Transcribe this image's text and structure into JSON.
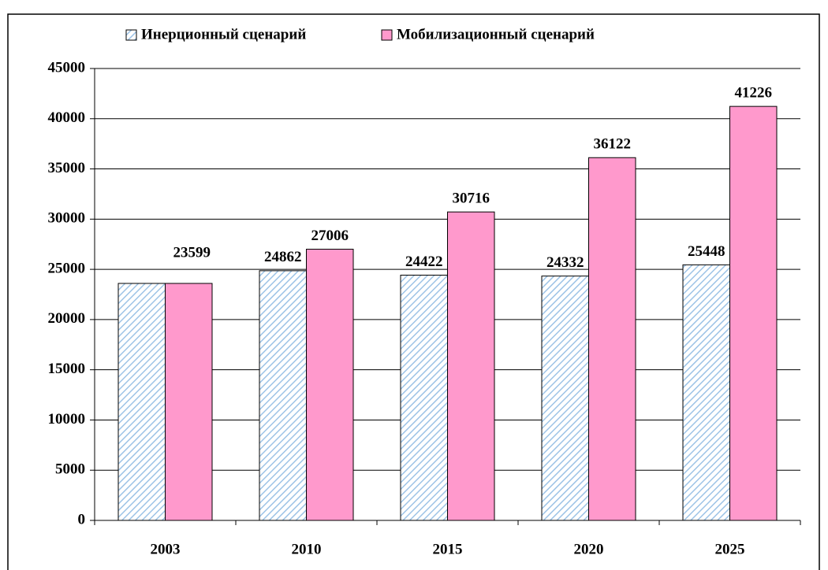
{
  "chart_data": {
    "type": "bar",
    "categories": [
      "2003",
      "2010",
      "2015",
      "2020",
      "2025"
    ],
    "series": [
      {
        "name": "Инерционный сценарий",
        "color": "#9dc3e6",
        "pattern": "hatch",
        "values": [
          23599,
          24862,
          24422,
          24332,
          25448
        ],
        "value_labels": [
          null,
          "24862",
          "24422",
          "24332",
          "25448"
        ]
      },
      {
        "name": "Мобилизационный сценарий",
        "color": "#ff99cc",
        "values": [
          23599,
          27006,
          30716,
          36122,
          41226
        ]
      }
    ],
    "ylim": [
      0,
      45000
    ],
    "yticks": [
      0,
      5000,
      10000,
      15000,
      20000,
      25000,
      30000,
      35000,
      40000,
      45000
    ],
    "grid": true,
    "legend": "top"
  }
}
